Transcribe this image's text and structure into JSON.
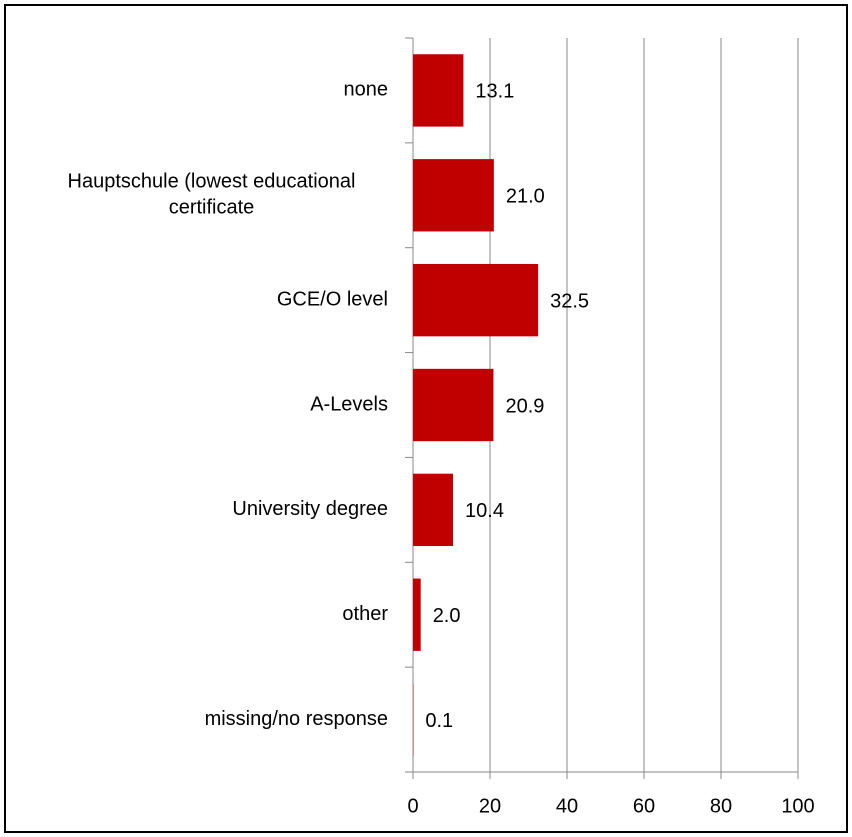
{
  "chart_data": {
    "type": "bar",
    "orientation": "horizontal",
    "categories": [
      "none",
      "Hauptschule (lowest educational certificate",
      "GCE/O level",
      "A-Levels",
      "University degree",
      "other",
      "missing/no response"
    ],
    "values": [
      13.1,
      21.0,
      32.5,
      20.9,
      10.4,
      2.0,
      0.1
    ],
    "value_labels": [
      "13.1",
      "21.0",
      "32.5",
      "20.9",
      "10.4",
      "2.0",
      "0.1"
    ],
    "color": "#c00000",
    "xlim": [
      0,
      100
    ],
    "xticks": [
      0,
      20,
      40,
      60,
      80,
      100
    ],
    "grid": true
  }
}
